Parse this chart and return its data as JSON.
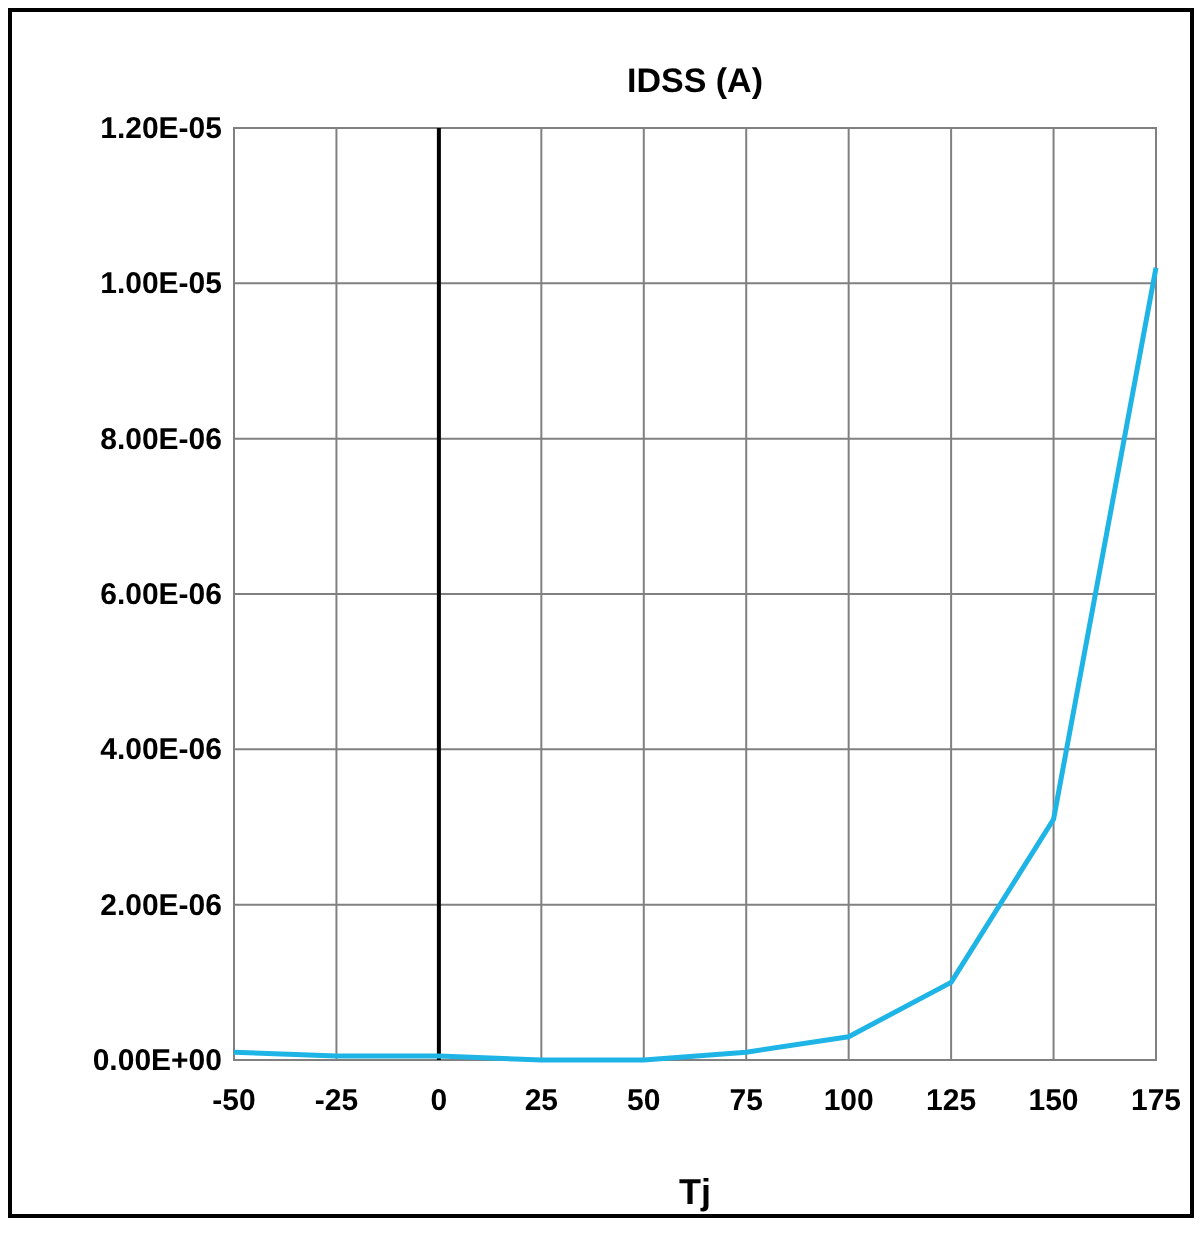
{
  "chart_data": {
    "type": "line",
    "title": "IDSS (A)",
    "xlabel": "Tj",
    "x": [
      -50,
      -25,
      0,
      25,
      50,
      75,
      100,
      125,
      150,
      175
    ],
    "series": [
      {
        "color": "#1fb4e6",
        "values": [
          1e-07,
          5e-08,
          5e-08,
          0,
          0,
          1e-07,
          3e-07,
          1e-06,
          3.1e-06,
          1.02e-05
        ]
      }
    ],
    "xlim": [
      -50,
      175
    ],
    "xticks": [
      -50,
      -25,
      0,
      25,
      50,
      75,
      100,
      125,
      150,
      175
    ],
    "ylim": [
      0,
      1.2e-05
    ],
    "yticks": [
      {
        "value": 0,
        "label": "0.00E+00"
      },
      {
        "value": 2e-06,
        "label": "2.00E-06"
      },
      {
        "value": 4e-06,
        "label": "4.00E-06"
      },
      {
        "value": 6e-06,
        "label": "6.00E-06"
      },
      {
        "value": 8e-06,
        "label": "8.00E-06"
      },
      {
        "value": 1e-05,
        "label": "1.00E-05"
      },
      {
        "value": 1.2e-05,
        "label": "1.20E-05"
      }
    ],
    "grid": true,
    "marker": "none",
    "line_style": "solid"
  }
}
